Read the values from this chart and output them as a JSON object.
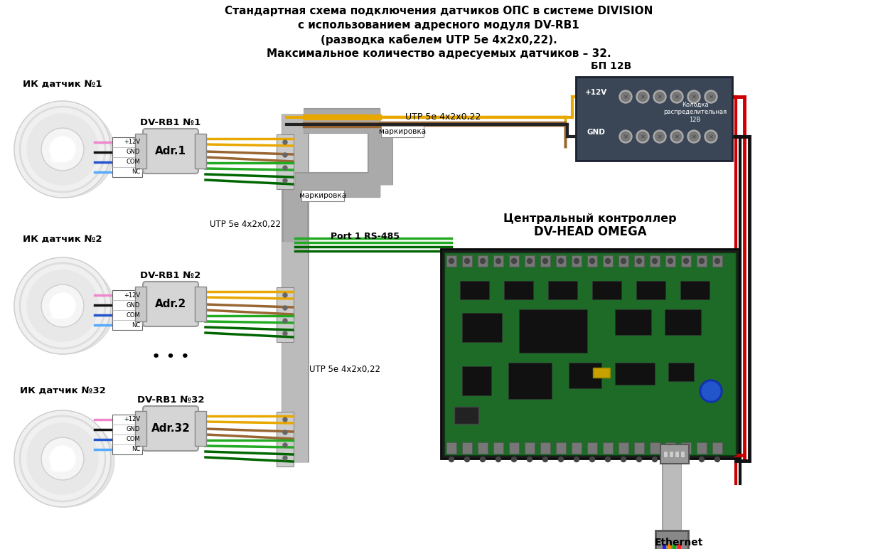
{
  "title_line1": "Стандартная схема подключения датчиков ОПС в системе DIVISION",
  "title_line2": "с использованием адресного модуля DV-RB1",
  "title_line3": "(разводка кабелем UTP 5e 4x2x0,22).",
  "title_line4": "Максимальное количество адресуемых датчиков – 32.",
  "bg_color": "#ffffff",
  "sensor_labels": [
    "ИК датчик №1",
    "ИК датчик №2",
    "ИК датчик №32"
  ],
  "module_labels": [
    "DV-RB1 №1",
    "DV-RB1 №2",
    "DV-RB1 №32"
  ],
  "adr_labels": [
    "Adr.1",
    "Adr.2",
    "Adr.32"
  ],
  "wire_labels_left": [
    "+12V",
    "GND",
    "COM",
    "NC"
  ],
  "utp_label": "UTP 5e 4x2x0,22",
  "marking_label": "маркировка",
  "port_label": "Port 1 RS-485",
  "bp_label": "БП 12В",
  "kolodka_label": "Колодка\nраспределительная\n12В",
  "plus12v_label": "+12V",
  "gnd_label": "GND",
  "controller_label1": "Центральный контроллер",
  "controller_label2": "DV-HEAD OMEGA",
  "ethernet_label": "Ethernet",
  "color_red": "#cc0000",
  "color_black": "#111111",
  "color_yellow_gold": "#e8a800",
  "color_brown": "#996633",
  "color_green": "#00aa00",
  "color_dkgreen": "#006600",
  "color_blue": "#2255cc",
  "color_pink": "#ee66cc",
  "color_gray": "#aaaaaa",
  "color_darkgray": "#555555",
  "color_wire_gray": "#888888"
}
